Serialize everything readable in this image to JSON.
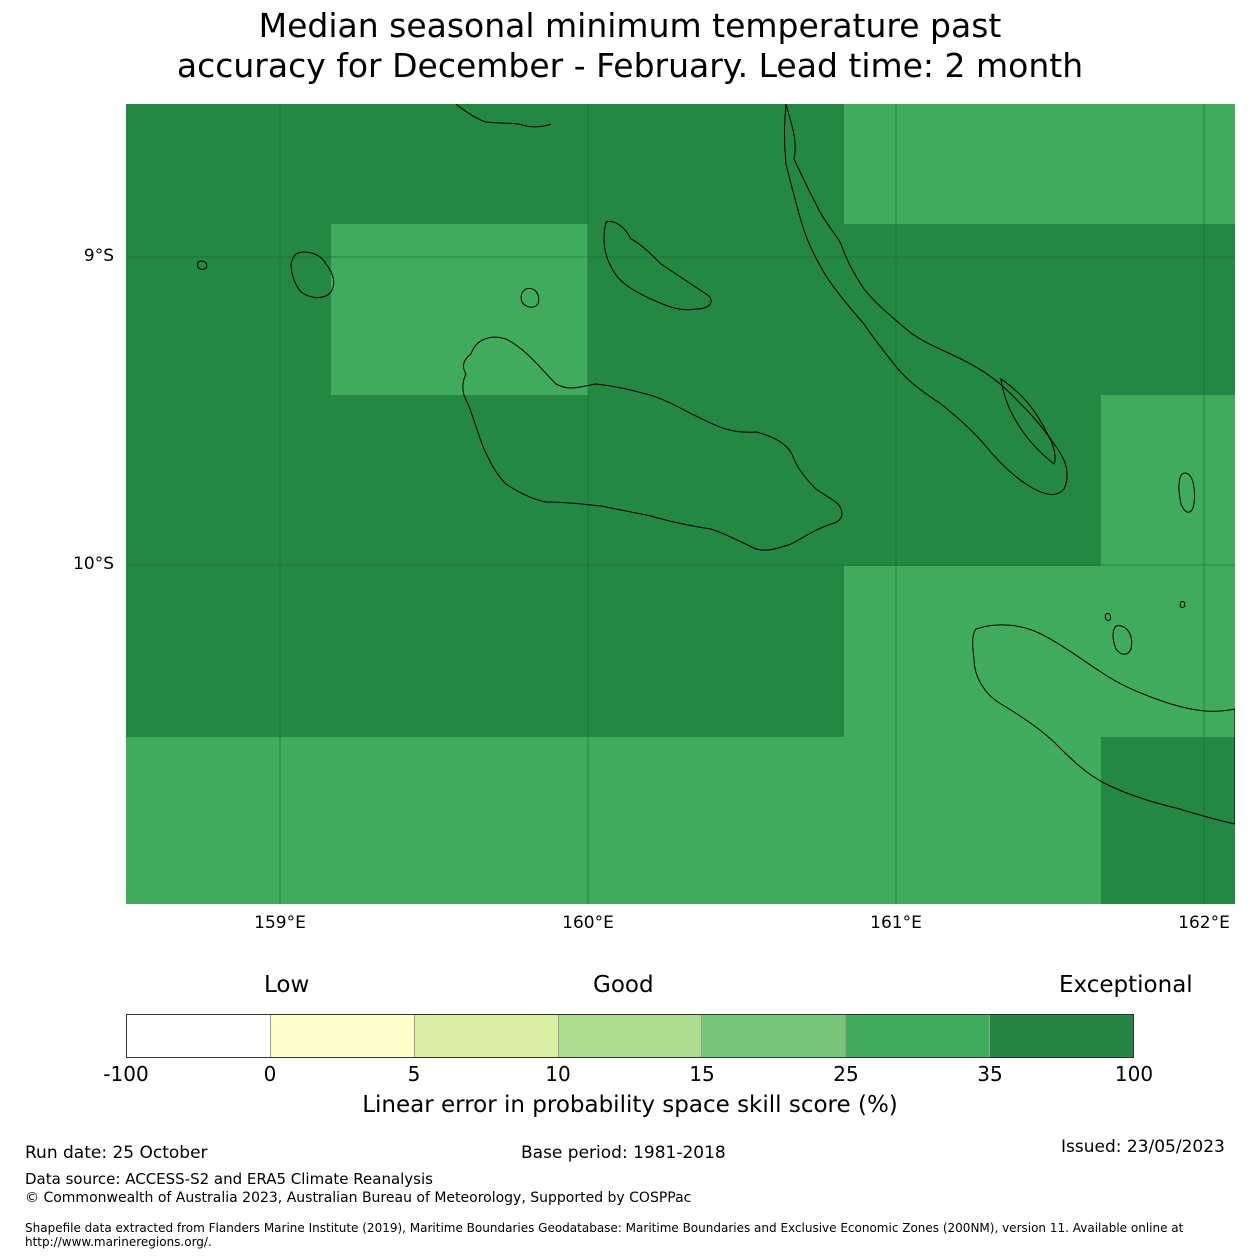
{
  "title_line1": "Median seasonal minimum temperature past",
  "title_line2": "accuracy for December - February. Lead time: 2 month",
  "map": {
    "lat_labels": [
      "9°S",
      "10°S"
    ],
    "lon_labels": [
      "159°E",
      "160°E",
      "161°E",
      "162°E"
    ],
    "extent": {
      "lon_min": 158.5,
      "lon_max": 162.1,
      "lat_max": -8.5,
      "lat_min": -11.1
    },
    "colors": {
      "exceptional": "#248742",
      "good_high": "#41ab5d"
    }
  },
  "colorbar": {
    "quality_labels": [
      "Low",
      "Good",
      "Exceptional"
    ],
    "ticks": [
      "-100",
      "0",
      "5",
      "10",
      "15",
      "25",
      "35",
      "100"
    ],
    "colors": [
      "#ffffff",
      "#ffffcc",
      "#d9f0a3",
      "#addd8e",
      "#78c679",
      "#41ab5d",
      "#238443"
    ],
    "label": "Linear error in probability space skill score (%)"
  },
  "footer": {
    "run_date": "Run date: 25 October",
    "base_period": "Base period: 1981-2018",
    "issued": "Issued: 23/05/2023",
    "data_source": "Data source: ACCESS-S2 and ERA5 Climate Reanalysis",
    "copyright": "© Commonwealth of Australia 2023, Australian Bureau of Meteorology, Supported by COSPPac",
    "shapefile_line1": "Shapefile data extracted from Flanders Marine Institute (2019), Maritime Boundaries Geodatabase: Maritime Boundaries and Exclusive Economic Zones (200NM), version 11. Available online at",
    "shapefile_line2": "http://www.marineregions.org/."
  }
}
